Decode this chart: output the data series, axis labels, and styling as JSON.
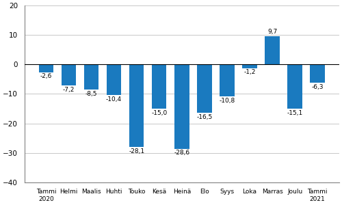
{
  "categories": [
    "Tammi\n2020",
    "Helmi",
    "Maalis",
    "Huhti",
    "Touko",
    "Kesä",
    "Heinä",
    "Elo",
    "Syys",
    "Loka",
    "Marras",
    "Joulu",
    "Tammi\n2021"
  ],
  "values": [
    -2.6,
    -7.2,
    -8.5,
    -10.4,
    -28.1,
    -15.0,
    -28.6,
    -16.5,
    -10.8,
    -1.2,
    9.7,
    -15.1,
    -6.3
  ],
  "bar_color": "#1a7abf",
  "ylim": [
    -40,
    20
  ],
  "yticks": [
    -40,
    -30,
    -20,
    -10,
    0,
    10,
    20
  ],
  "value_fontsize": 6.5,
  "xlabel_fontsize": 6.5,
  "ytick_fontsize": 7.5,
  "background_color": "#ffffff",
  "grid_color": "#c8c8c8"
}
